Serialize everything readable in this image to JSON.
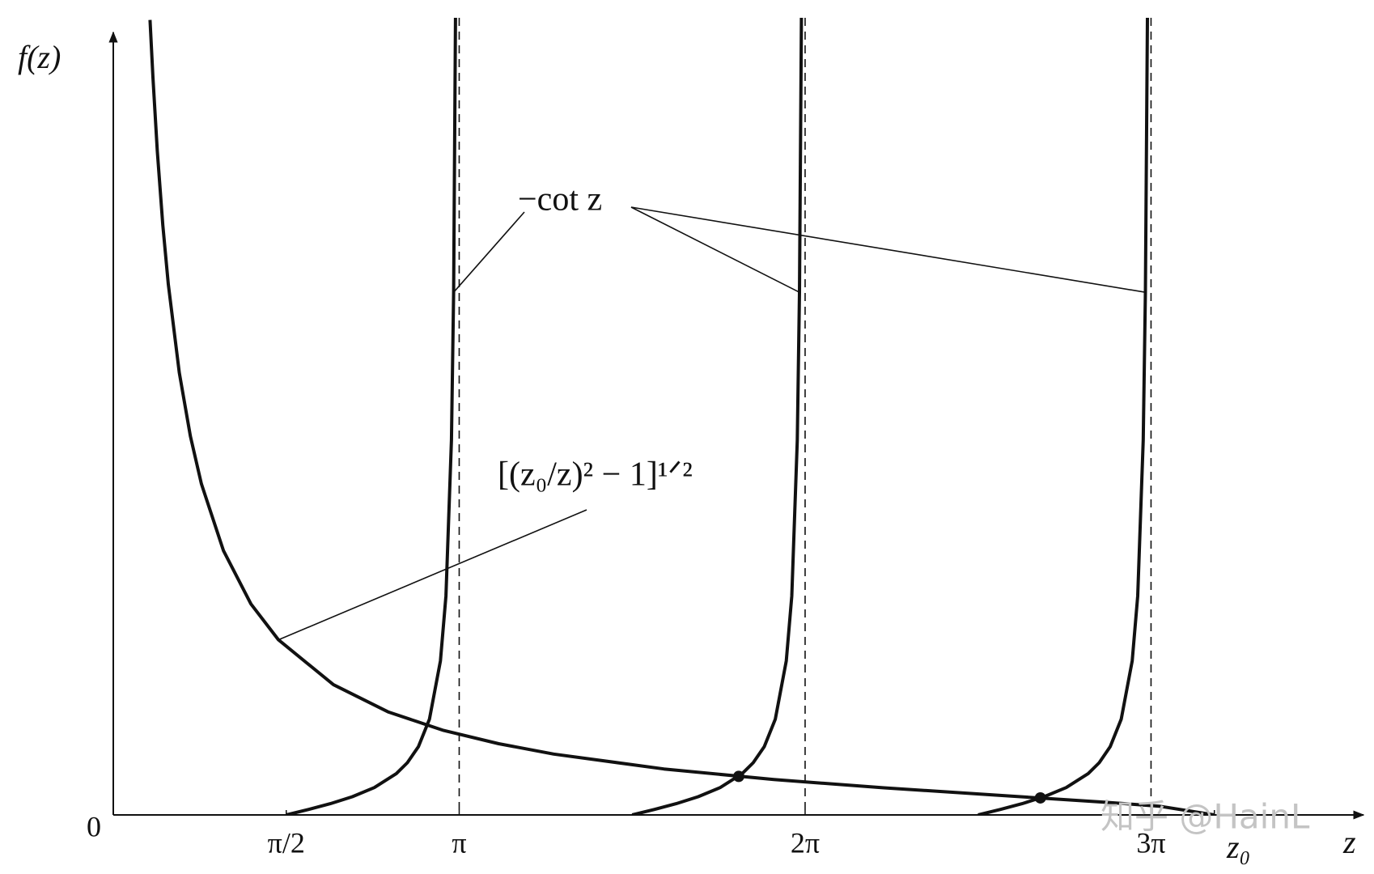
{
  "chart_data": {
    "type": "line",
    "y_label": "f(z)",
    "x_label": "z",
    "xlim": [
      0,
      11.2
    ],
    "ylim": [
      0,
      30
    ],
    "xticks": [
      {
        "value": 1.5708,
        "label": "π/2"
      },
      {
        "value": 3.1416,
        "label": "π"
      },
      {
        "value": 6.2832,
        "label": "2π"
      },
      {
        "value": 9.4248,
        "label": "3π"
      },
      {
        "value": 10,
        "label": "z₀"
      }
    ],
    "yticks": [
      0
    ],
    "grid": false,
    "series": [
      {
        "name": "−cot z",
        "color": "#111111",
        "x": [
          1.571,
          1.771,
          1.971,
          2.171,
          2.371,
          2.571,
          2.671,
          2.771,
          2.871,
          2.971,
          3.021,
          3.071,
          3.091,
          3.108,
          null,
          4.712,
          4.912,
          5.112,
          5.312,
          5.512,
          5.712,
          5.812,
          5.912,
          6.012,
          6.112,
          6.162,
          6.212,
          6.232,
          6.25,
          null,
          7.854,
          8.054,
          8.254,
          8.454,
          8.654,
          8.854,
          8.954,
          9.054,
          9.154,
          9.254,
          9.304,
          9.354,
          9.374,
          9.392
        ],
        "values": [
          0,
          0.203,
          0.423,
          0.684,
          1.03,
          1.557,
          1.965,
          2.572,
          3.602,
          5.798,
          8.238,
          14.1,
          19.67,
          30,
          null,
          0,
          0.203,
          0.423,
          0.684,
          1.03,
          1.557,
          1.965,
          2.572,
          3.602,
          5.798,
          8.238,
          14.1,
          19.67,
          30,
          null,
          0,
          0.203,
          0.423,
          0.684,
          1.03,
          1.557,
          1.965,
          2.572,
          3.602,
          5.798,
          8.238,
          14.1,
          19.67,
          30
        ]
      },
      {
        "name": "[(z₀/z)² − 1]¹ᐟ²",
        "color": "#111111",
        "x": [
          0.334,
          0.36,
          0.4,
          0.45,
          0.5,
          0.6,
          0.7,
          0.8,
          1,
          1.25,
          1.5,
          2,
          2.5,
          3,
          3.5,
          4,
          5,
          6,
          7,
          8,
          9,
          9.5,
          10
        ],
        "values": [
          29.92,
          27.76,
          24.98,
          22.2,
          19.97,
          16.64,
          14.25,
          12.46,
          9.95,
          7.94,
          6.59,
          4.9,
          3.87,
          3.18,
          2.68,
          2.29,
          1.73,
          1.33,
          1.02,
          0.75,
          0.48,
          0.33,
          0
        ]
      }
    ],
    "markers": {
      "x": [
        5.68,
        8.42
      ],
      "values": [
        1.45,
        0.64
      ]
    },
    "watermark": "知乎 @HainL"
  }
}
